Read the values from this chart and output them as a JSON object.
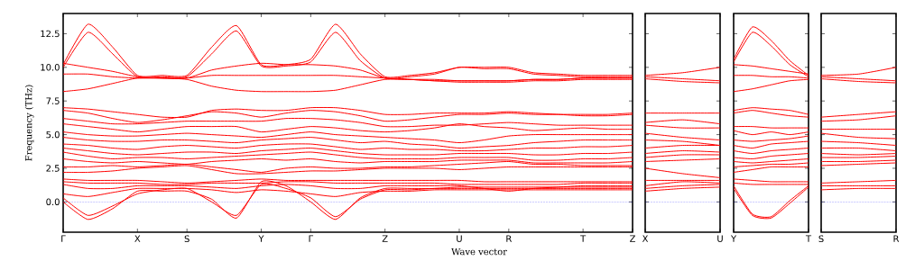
{
  "chart_data": [
    {
      "type": "line",
      "xlabel": "Wave vector",
      "ylabel": "Frequency (THz)",
      "ylim": [
        -2.25,
        14
      ],
      "categories": [
        "Γ",
        null,
        null,
        "X",
        null,
        "S",
        null,
        null,
        "Y",
        null,
        "Γ",
        null,
        null,
        "Z",
        null,
        null,
        "U",
        null,
        "R",
        null,
        null,
        "T",
        null,
        "Z"
      ],
      "yticks": [
        {
          "value": 0,
          "label": "0.0"
        },
        {
          "value": 2.5,
          "label": "2.5"
        },
        {
          "value": 5,
          "label": "5.0"
        },
        {
          "value": 7.5,
          "label": "7.5"
        },
        {
          "value": 10,
          "label": "10.0"
        },
        {
          "value": 12.5,
          "label": "12.5"
        }
      ],
      "ref_lines": [
        {
          "axis": "y",
          "value": 0,
          "color": "#0000ff",
          "line_style": "dotted"
        }
      ],
      "series": [
        {
          "color": "#ff0000",
          "values": [
            10.2,
            13.2,
            11.5,
            9.4,
            9.4,
            9.4,
            11.5,
            13.1,
            10.2,
            10.2,
            10.6,
            13.2,
            11.0,
            9.3,
            9.4,
            9.6,
            10.0,
            10.0,
            10.0,
            9.6,
            9.5,
            9.4,
            9.4,
            9.4
          ]
        },
        {
          "color": "#ff0000",
          "values": [
            10.0,
            12.6,
            11.0,
            9.3,
            9.3,
            9.3,
            11.0,
            12.7,
            10.1,
            10.1,
            10.4,
            12.6,
            10.5,
            9.2,
            9.3,
            9.5,
            10.0,
            9.9,
            9.9,
            9.5,
            9.4,
            9.3,
            9.3,
            9.3
          ]
        },
        {
          "color": "#ff0000",
          "values": [
            10.3,
            10.0,
            9.7,
            9.3,
            9.2,
            9.2,
            9.8,
            10.1,
            10.3,
            10.2,
            10.2,
            10.1,
            9.8,
            9.2,
            9.1,
            9.0,
            9.0,
            9.0,
            9.0,
            9.1,
            9.1,
            9.2,
            9.2,
            9.2
          ]
        },
        {
          "color": "#ff0000",
          "values": [
            9.5,
            9.5,
            9.3,
            9.2,
            9.2,
            9.2,
            9.4,
            9.4,
            9.4,
            9.4,
            9.4,
            9.4,
            9.3,
            9.2,
            9.1,
            9.0,
            8.9,
            8.9,
            8.9,
            9.0,
            9.0,
            9.1,
            9.1,
            9.1
          ]
        },
        {
          "color": "#ff0000",
          "values": [
            8.2,
            8.4,
            8.8,
            9.2,
            9.2,
            9.1,
            8.6,
            8.3,
            8.2,
            8.2,
            8.2,
            8.3,
            8.7,
            9.1,
            9.1,
            9.1,
            9.0,
            9.0,
            9.0,
            9.1,
            9.1,
            9.2,
            9.2,
            9.2
          ]
        },
        {
          "color": "#ff0000",
          "values": [
            7.0,
            6.9,
            6.7,
            6.5,
            6.3,
            6.3,
            6.8,
            6.9,
            6.8,
            6.8,
            7.0,
            7.0,
            6.8,
            6.5,
            6.5,
            6.6,
            6.6,
            6.6,
            6.7,
            6.6,
            6.5,
            6.4,
            6.4,
            6.5
          ]
        },
        {
          "color": "#ff0000",
          "values": [
            6.8,
            6.6,
            6.2,
            5.9,
            6.1,
            6.4,
            6.7,
            6.6,
            6.3,
            6.6,
            6.8,
            6.7,
            6.4,
            6.0,
            6.1,
            6.3,
            6.5,
            6.5,
            6.6,
            6.5,
            6.5,
            6.5,
            6.5,
            6.6
          ]
        },
        {
          "color": "#ff0000",
          "values": [
            6.2,
            6.0,
            5.8,
            5.8,
            5.9,
            6.0,
            6.0,
            6.0,
            6.0,
            6.2,
            6.2,
            6.1,
            5.9,
            5.6,
            5.6,
            5.7,
            5.7,
            5.8,
            5.9,
            5.8,
            5.7,
            5.7,
            5.7,
            5.7
          ]
        },
        {
          "color": "#ff0000",
          "values": [
            5.8,
            5.6,
            5.4,
            5.2,
            5.4,
            5.6,
            5.6,
            5.6,
            5.2,
            5.4,
            5.6,
            5.5,
            5.3,
            5.2,
            5.3,
            5.5,
            5.8,
            5.6,
            5.5,
            5.3,
            5.4,
            5.5,
            5.4,
            5.4
          ]
        },
        {
          "color": "#ff0000",
          "values": [
            5.2,
            5.0,
            4.9,
            4.9,
            5.0,
            5.1,
            5.0,
            4.9,
            4.8,
            5.0,
            5.2,
            5.0,
            4.9,
            4.8,
            4.7,
            4.6,
            4.4,
            4.6,
            4.9,
            5.0,
            5.0,
            5.0,
            5.0,
            5.0
          ]
        },
        {
          "color": "#ff0000",
          "values": [
            4.8,
            4.6,
            4.5,
            4.5,
            4.6,
            4.6,
            4.5,
            4.4,
            4.6,
            4.7,
            4.8,
            4.6,
            4.4,
            4.5,
            4.3,
            4.2,
            4.0,
            4.1,
            4.2,
            4.4,
            4.5,
            4.6,
            4.6,
            4.6
          ]
        },
        {
          "color": "#ff0000",
          "values": [
            4.3,
            4.2,
            4.0,
            3.9,
            4.1,
            4.2,
            4.1,
            4.0,
            4.2,
            4.3,
            4.3,
            4.1,
            3.9,
            4.0,
            3.9,
            3.9,
            3.8,
            3.8,
            3.9,
            4.0,
            4.0,
            4.1,
            4.1,
            4.2
          ]
        },
        {
          "color": "#ff0000",
          "values": [
            4.0,
            3.8,
            3.6,
            3.5,
            3.6,
            3.7,
            3.7,
            3.6,
            3.8,
            3.9,
            4.0,
            3.8,
            3.6,
            3.5,
            3.5,
            3.5,
            3.6,
            3.6,
            3.6,
            3.5,
            3.5,
            3.6,
            3.6,
            3.7
          ]
        },
        {
          "color": "#ff0000",
          "values": [
            3.7,
            3.4,
            3.2,
            3.3,
            3.3,
            3.2,
            3.3,
            3.4,
            3.5,
            3.6,
            3.7,
            3.5,
            3.3,
            3.2,
            3.2,
            3.2,
            3.3,
            3.3,
            3.3,
            3.1,
            3.1,
            3.2,
            3.2,
            3.3
          ]
        },
        {
          "color": "#ff0000",
          "values": [
            3.2,
            3.0,
            2.9,
            3.0,
            2.9,
            2.8,
            3.0,
            3.1,
            3.2,
            3.1,
            3.2,
            3.0,
            2.9,
            3.0,
            3.0,
            3.0,
            3.1,
            3.1,
            3.1,
            2.9,
            2.9,
            2.9,
            2.9,
            3.0
          ]
        },
        {
          "color": "#ff0000",
          "values": [
            2.6,
            2.6,
            2.7,
            2.6,
            2.7,
            2.8,
            2.6,
            2.4,
            2.2,
            2.5,
            2.6,
            2.5,
            2.5,
            2.6,
            2.6,
            2.7,
            2.8,
            2.9,
            3.0,
            2.8,
            2.8,
            2.7,
            2.7,
            2.7
          ]
        },
        {
          "color": "#ff0000",
          "values": [
            2.2,
            2.2,
            2.3,
            2.5,
            2.6,
            2.7,
            2.4,
            2.1,
            2.1,
            2.2,
            2.3,
            2.3,
            2.4,
            2.5,
            2.5,
            2.5,
            2.4,
            2.5,
            2.6,
            2.6,
            2.6,
            2.6,
            2.6,
            2.6
          ]
        },
        {
          "color": "#ff0000",
          "values": [
            1.7,
            1.6,
            1.6,
            1.6,
            1.5,
            1.4,
            1.5,
            1.6,
            1.7,
            1.6,
            1.6,
            1.6,
            1.6,
            1.6,
            1.6,
            1.6,
            1.6,
            1.5,
            1.5,
            1.5,
            1.5,
            1.5,
            1.5,
            1.5
          ]
        },
        {
          "color": "#ff0000",
          "values": [
            1.5,
            1.4,
            1.4,
            1.4,
            1.3,
            1.3,
            1.4,
            1.4,
            1.4,
            1.5,
            1.5,
            1.4,
            1.4,
            1.4,
            1.4,
            1.4,
            1.3,
            1.3,
            1.3,
            1.3,
            1.3,
            1.4,
            1.4,
            1.4
          ]
        },
        {
          "color": "#ff0000",
          "values": [
            1.3,
            1.0,
            1.0,
            1.2,
            1.2,
            1.2,
            1.1,
            1.0,
            1.2,
            1.3,
            1.2,
            1.0,
            1.0,
            1.2,
            1.2,
            1.2,
            1.2,
            1.0,
            0.8,
            1.0,
            1.1,
            1.2,
            1.2,
            1.2
          ]
        },
        {
          "color": "#ff0000",
          "values": [
            0,
            -1.3,
            -0.5,
            0.8,
            0.8,
            0.8,
            0.2,
            -1.2,
            1.5,
            1.2,
            0,
            -1.3,
            0.3,
            1.0,
            1.0,
            1.0,
            1.1,
            1.1,
            1.1,
            1.1,
            1.1,
            1.1,
            1.1,
            1.1
          ]
        },
        {
          "color": "#ff0000",
          "values": [
            0.3,
            -1.0,
            -0.3,
            0.6,
            0.9,
            1.0,
            0.0,
            -1.0,
            1.3,
            1.0,
            0.3,
            -1.1,
            0.2,
            0.9,
            0.9,
            1.0,
            1.0,
            1.0,
            1.0,
            1.0,
            1.0,
            1.0,
            1.0,
            1.0
          ]
        },
        {
          "color": "#ff0000",
          "values": [
            0.6,
            0.4,
            0.7,
            1.0,
            1.0,
            1.0,
            0.9,
            0.7,
            0.9,
            0.8,
            0.6,
            0.4,
            0.7,
            0.8,
            0.8,
            0.9,
            0.9,
            0.9,
            0.9,
            0.9,
            0.9,
            0.9,
            0.9,
            0.9
          ]
        }
      ]
    },
    {
      "type": "line",
      "tick_labels": "x",
      "ylim": [
        -2.25,
        14
      ],
      "categories": [
        "X",
        null,
        "U"
      ],
      "yticks": [
        {
          "value": 0,
          "label": null
        },
        {
          "value": 2.5,
          "label": null
        },
        {
          "value": 5,
          "label": null
        },
        {
          "value": 7.5,
          "label": null
        },
        {
          "value": 10,
          "label": null
        },
        {
          "value": 12.5,
          "label": null
        }
      ],
      "ref_lines": [
        {
          "axis": "y",
          "value": 0,
          "color": "#0000ff",
          "line_style": "dotted"
        }
      ],
      "series": [
        {
          "color": "#ff0000",
          "values": [
            9.4,
            9.6,
            10.0
          ]
        },
        {
          "color": "#ff0000",
          "values": [
            9.3,
            9.15,
            9.0
          ]
        },
        {
          "color": "#ff0000",
          "values": [
            9.15,
            8.95,
            8.85
          ]
        },
        {
          "color": "#ff0000",
          "values": [
            6.6,
            6.6,
            6.6
          ]
        },
        {
          "color": "#ff0000",
          "values": [
            5.9,
            6.1,
            5.8
          ]
        },
        {
          "color": "#ff0000",
          "values": [
            5.7,
            5.5,
            5.5
          ]
        },
        {
          "color": "#ff0000",
          "values": [
            5.1,
            4.8,
            4.6
          ]
        },
        {
          "color": "#ff0000",
          "values": [
            4.6,
            4.5,
            4.2
          ]
        },
        {
          "color": "#ff0000",
          "values": [
            4.0,
            4.2,
            4.2
          ]
        },
        {
          "color": "#ff0000",
          "values": [
            3.6,
            3.8,
            3.7
          ]
        },
        {
          "color": "#ff0000",
          "values": [
            3.3,
            3.5,
            3.5
          ]
        },
        {
          "color": "#ff0000",
          "values": [
            3.0,
            3.1,
            3.2
          ]
        },
        {
          "color": "#ff0000",
          "values": [
            2.5,
            2.1,
            1.8
          ]
        },
        {
          "color": "#ff0000",
          "values": [
            1.6,
            1.6,
            1.6
          ]
        },
        {
          "color": "#ff0000",
          "values": [
            1.2,
            1.5,
            1.4
          ]
        },
        {
          "color": "#ff0000",
          "values": [
            1.0,
            1.2,
            1.3
          ]
        },
        {
          "color": "#ff0000",
          "values": [
            0.8,
            1.0,
            1.1
          ]
        }
      ]
    },
    {
      "type": "line",
      "tick_labels": "x",
      "ylim": [
        -2.25,
        14
      ],
      "categories": [
        "Y",
        null,
        null,
        null,
        "T"
      ],
      "yticks": [
        {
          "value": 0,
          "label": null
        },
        {
          "value": 2.5,
          "label": null
        },
        {
          "value": 5,
          "label": null
        },
        {
          "value": 7.5,
          "label": null
        },
        {
          "value": 10,
          "label": null
        },
        {
          "value": 12.5,
          "label": null
        }
      ],
      "ref_lines": [
        {
          "axis": "y",
          "value": 0,
          "color": "#0000ff",
          "line_style": "dotted"
        }
      ],
      "series": [
        {
          "color": "#ff0000",
          "values": [
            10.6,
            13.0,
            12.0,
            10.5,
            9.4
          ]
        },
        {
          "color": "#ff0000",
          "values": [
            10.4,
            12.6,
            11.6,
            10.2,
            9.3
          ]
        },
        {
          "color": "#ff0000",
          "values": [
            10.2,
            10.1,
            9.9,
            9.7,
            9.5
          ]
        },
        {
          "color": "#ff0000",
          "values": [
            9.4,
            9.4,
            9.3,
            9.3,
            9.2
          ]
        },
        {
          "color": "#ff0000",
          "values": [
            8.2,
            8.4,
            8.7,
            9.0,
            9.1
          ]
        },
        {
          "color": "#ff0000",
          "values": [
            6.8,
            7.0,
            6.9,
            6.8,
            6.5
          ]
        },
        {
          "color": "#ff0000",
          "values": [
            6.6,
            6.8,
            6.6,
            6.4,
            6.3
          ]
        },
        {
          "color": "#ff0000",
          "values": [
            5.6,
            5.6,
            5.5,
            5.5,
            5.5
          ]
        },
        {
          "color": "#ff0000",
          "values": [
            5.3,
            5.0,
            5.2,
            5.0,
            5.2
          ]
        },
        {
          "color": "#ff0000",
          "values": [
            4.6,
            4.5,
            4.6,
            4.7,
            4.9
          ]
        },
        {
          "color": "#ff0000",
          "values": [
            4.2,
            4.0,
            4.3,
            4.4,
            4.5
          ]
        },
        {
          "color": "#ff0000",
          "values": [
            3.8,
            3.6,
            3.8,
            3.9,
            4.0
          ]
        },
        {
          "color": "#ff0000",
          "values": [
            3.3,
            3.2,
            3.4,
            3.5,
            3.6
          ]
        },
        {
          "color": "#ff0000",
          "values": [
            3.0,
            2.9,
            3.0,
            3.1,
            3.2
          ]
        },
        {
          "color": "#ff0000",
          "values": [
            2.6,
            2.7,
            2.8,
            2.8,
            2.9
          ]
        },
        {
          "color": "#ff0000",
          "values": [
            2.2,
            2.4,
            2.6,
            2.6,
            2.6
          ]
        },
        {
          "color": "#ff0000",
          "values": [
            1.7,
            1.6,
            1.5,
            1.5,
            1.5
          ]
        },
        {
          "color": "#ff0000",
          "values": [
            1.4,
            1.3,
            1.3,
            1.3,
            1.3
          ]
        },
        {
          "color": "#ff0000",
          "values": [
            1.2,
            -0.9,
            -1.1,
            0.1,
            1.2
          ]
        },
        {
          "color": "#ff0000",
          "values": [
            1.0,
            -1.0,
            -1.2,
            -0.1,
            1.1
          ]
        }
      ]
    },
    {
      "type": "line",
      "tick_labels": "x",
      "ylim": [
        -2.25,
        14
      ],
      "categories": [
        "S",
        null,
        "R"
      ],
      "yticks": [
        {
          "value": 0,
          "label": null
        },
        {
          "value": 2.5,
          "label": null
        },
        {
          "value": 5,
          "label": null
        },
        {
          "value": 7.5,
          "label": null
        },
        {
          "value": 10,
          "label": null
        },
        {
          "value": 12.5,
          "label": null
        }
      ],
      "ref_lines": [
        {
          "axis": "y",
          "value": 0,
          "color": "#0000ff",
          "line_style": "dotted"
        }
      ],
      "series": [
        {
          "color": "#ff0000",
          "values": [
            9.4,
            9.5,
            10.0
          ]
        },
        {
          "color": "#ff0000",
          "values": [
            9.3,
            9.15,
            9.0
          ]
        },
        {
          "color": "#ff0000",
          "values": [
            9.15,
            8.95,
            8.85
          ]
        },
        {
          "color": "#ff0000",
          "values": [
            6.3,
            6.5,
            6.7
          ]
        },
        {
          "color": "#ff0000",
          "values": [
            6.0,
            6.1,
            6.4
          ]
        },
        {
          "color": "#ff0000",
          "values": [
            5.4,
            5.4,
            5.4
          ]
        },
        {
          "color": "#ff0000",
          "values": [
            5.1,
            4.8,
            4.7
          ]
        },
        {
          "color": "#ff0000",
          "values": [
            4.5,
            4.4,
            4.2
          ]
        },
        {
          "color": "#ff0000",
          "values": [
            4.0,
            4.0,
            3.8
          ]
        },
        {
          "color": "#ff0000",
          "values": [
            3.6,
            3.5,
            3.6
          ]
        },
        {
          "color": "#ff0000",
          "values": [
            3.3,
            3.3,
            3.4
          ]
        },
        {
          "color": "#ff0000",
          "values": [
            3.0,
            3.0,
            3.1
          ]
        },
        {
          "color": "#ff0000",
          "values": [
            2.7,
            2.8,
            2.9
          ]
        },
        {
          "color": "#ff0000",
          "values": [
            1.4,
            1.5,
            1.6
          ]
        },
        {
          "color": "#ff0000",
          "values": [
            1.2,
            1.2,
            1.2
          ]
        },
        {
          "color": "#ff0000",
          "values": [
            0.9,
            1.0,
            1.0
          ]
        }
      ]
    }
  ]
}
